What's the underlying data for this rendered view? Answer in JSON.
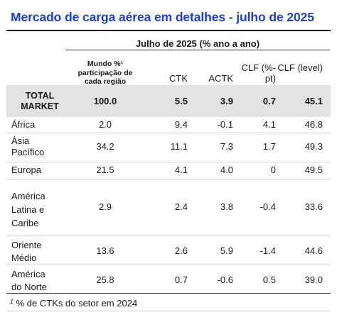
{
  "title": "Mercado de carga aérea em detalhes - julho de 2025",
  "group_header": "Julho de 2025 (% ano a ano)",
  "columns": {
    "mundo": "Mundo %¹ participação de cada região",
    "ctk": "CTK",
    "actk": "ACTK",
    "clf_pt": "CLF (%-pt)",
    "clf_level": "CLF (level)"
  },
  "total": {
    "region": "TOTAL MARKET",
    "mundo": "100.0",
    "ctk": "5.5",
    "actk": "3.9",
    "clf_pt": "0.7",
    "clf_level": "45.1"
  },
  "rows": [
    {
      "region": "África",
      "mundo": "2.0",
      "ctk": "9.4",
      "actk": "-0.1",
      "clf_pt": "4.1",
      "clf_level": "46.8"
    },
    {
      "region": "Ásia Pacífico",
      "mundo": "34.2",
      "ctk": "11.1",
      "actk": "7.3",
      "clf_pt": "1.7",
      "clf_level": "49.3"
    },
    {
      "region": "Europa",
      "mundo": "21.5",
      "ctk": "4.1",
      "actk": "4.0",
      "clf_pt": "0",
      "clf_level": "49.5"
    },
    {
      "region": "América Latina e Caribe",
      "mundo": "2.9",
      "ctk": "2.4",
      "actk": "3.8",
      "clf_pt": "-0.4",
      "clf_level": "33.6"
    },
    {
      "region": "Oriente Médio",
      "mundo": "13.6",
      "ctk": "2.6",
      "actk": "5.9",
      "clf_pt": "-1.4",
      "clf_level": "44.6"
    },
    {
      "region": "América do Norte",
      "mundo": "25.8",
      "ctk": "0.7",
      "actk": "-0.6",
      "clf_pt": "0.5",
      "clf_level": "39.0"
    }
  ],
  "footnote": {
    "marker": "1",
    "text": "% de CTKs do setor em 2024"
  }
}
